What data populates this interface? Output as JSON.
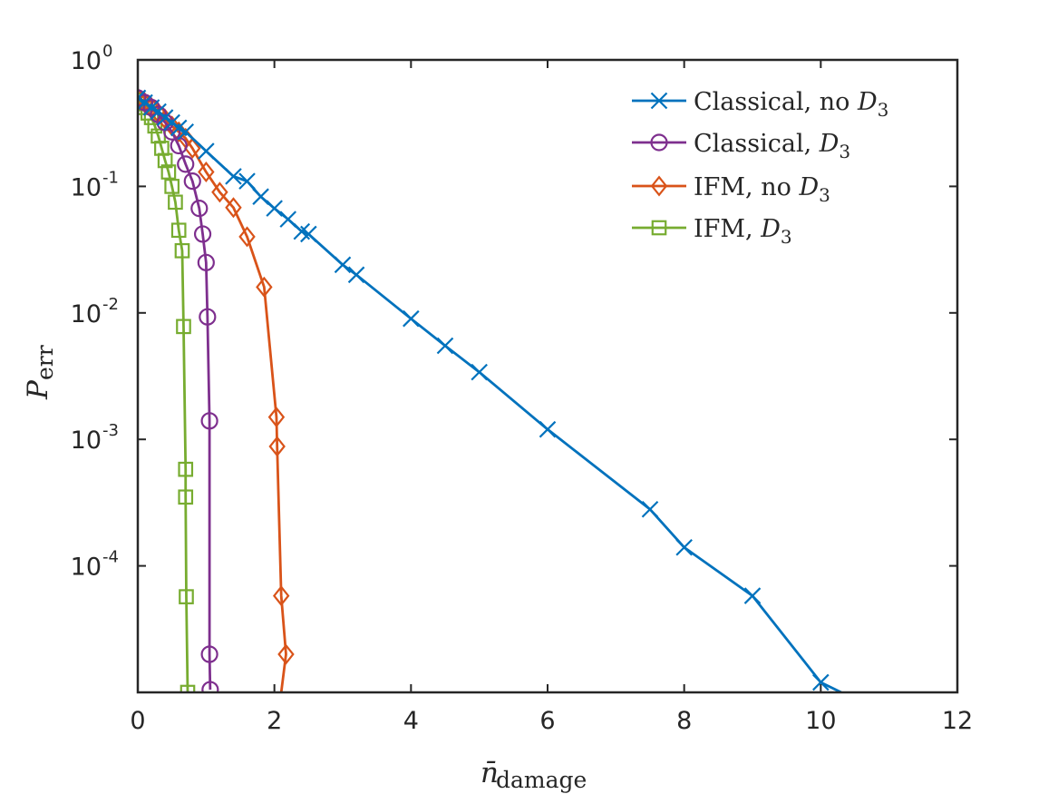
{
  "chart_data": {
    "type": "line",
    "xlabel": {
      "base": "n̄",
      "subscript": "damage"
    },
    "ylabel": {
      "base": "P",
      "subscript": "err"
    },
    "xlim": [
      0,
      12
    ],
    "ylim_log10": [
      -5.0,
      0
    ],
    "yscale": "log",
    "grid": false,
    "legend_position": "top-right",
    "x_ticks": [
      "0",
      "2",
      "4",
      "6",
      "8",
      "10",
      "12"
    ],
    "y_ticks": [
      {
        "base": "10",
        "exp": "0"
      },
      {
        "base": "10",
        "exp": "-1"
      },
      {
        "base": "10",
        "exp": "-2"
      },
      {
        "base": "10",
        "exp": "-3"
      },
      {
        "base": "10",
        "exp": "-4"
      }
    ],
    "series": [
      {
        "name": "Classical, no D3",
        "legend_text": "Classical, no ",
        "legend_math": {
          "base": "D",
          "subscript": "3"
        },
        "color": "#0072BD",
        "marker": "x",
        "x": [
          0.0,
          0.1,
          0.2,
          0.3,
          0.4,
          0.5,
          0.6,
          0.7,
          1.0,
          1.4,
          1.6,
          1.8,
          2.0,
          2.2,
          2.4,
          2.5,
          3.0,
          3.2,
          4.0,
          4.5,
          5.0,
          6.0,
          7.5,
          8.0,
          9.0,
          10.0,
          10.3
        ],
        "y": [
          0.5,
          0.46,
          0.42,
          0.39,
          0.35,
          0.32,
          0.29,
          0.27,
          0.19,
          0.12,
          0.11,
          0.083,
          0.067,
          0.055,
          0.044,
          0.042,
          0.024,
          0.02,
          0.009,
          0.0055,
          0.0034,
          0.0012,
          0.00028,
          0.00014,
          5.8e-05,
          1.2e-05,
          1e-05
        ]
      },
      {
        "name": "Classical, D3",
        "legend_text": "Classical, ",
        "legend_math": {
          "base": "D",
          "subscript": "3"
        },
        "color": "#7E2F8E",
        "marker": "o",
        "x": [
          0.0,
          0.1,
          0.2,
          0.3,
          0.4,
          0.5,
          0.6,
          0.7,
          0.8,
          0.9,
          0.95,
          1.0,
          1.02,
          1.05,
          1.05,
          1.06
        ],
        "y": [
          0.5,
          0.46,
          0.42,
          0.37,
          0.32,
          0.27,
          0.21,
          0.15,
          0.11,
          0.067,
          0.042,
          0.025,
          0.0093,
          0.0014,
          2e-05,
          1.05e-05
        ]
      },
      {
        "name": "IFM, no D3",
        "legend_text": "IFM, no ",
        "legend_math": {
          "base": "D",
          "subscript": "3"
        },
        "color": "#D95319",
        "marker": "diamond",
        "x": [
          0.0,
          0.1,
          0.2,
          0.3,
          0.4,
          0.5,
          0.6,
          0.7,
          0.8,
          1.0,
          1.2,
          1.4,
          1.6,
          1.85,
          2.03,
          2.04,
          2.1,
          2.17,
          2.1
        ],
        "y": [
          0.5,
          0.46,
          0.42,
          0.38,
          0.34,
          0.3,
          0.27,
          0.24,
          0.2,
          0.13,
          0.09,
          0.068,
          0.04,
          0.016,
          0.0015,
          0.00088,
          5.8e-05,
          2e-05,
          1e-05
        ]
      },
      {
        "name": "IFM, D3",
        "legend_text": "IFM, ",
        "legend_math": {
          "base": "D",
          "subscript": "3"
        },
        "color": "#77AC30",
        "marker": "square",
        "x": [
          0.0,
          0.05,
          0.1,
          0.15,
          0.2,
          0.25,
          0.3,
          0.35,
          0.4,
          0.45,
          0.5,
          0.55,
          0.6,
          0.65,
          0.67,
          0.7,
          0.7,
          0.71,
          0.73,
          0.73
        ],
        "y": [
          0.48,
          0.45,
          0.42,
          0.38,
          0.35,
          0.3,
          0.25,
          0.2,
          0.16,
          0.13,
          0.1,
          0.075,
          0.045,
          0.031,
          0.0078,
          0.00058,
          0.00035,
          5.7e-05,
          1e-05,
          1e-05
        ]
      }
    ]
  }
}
